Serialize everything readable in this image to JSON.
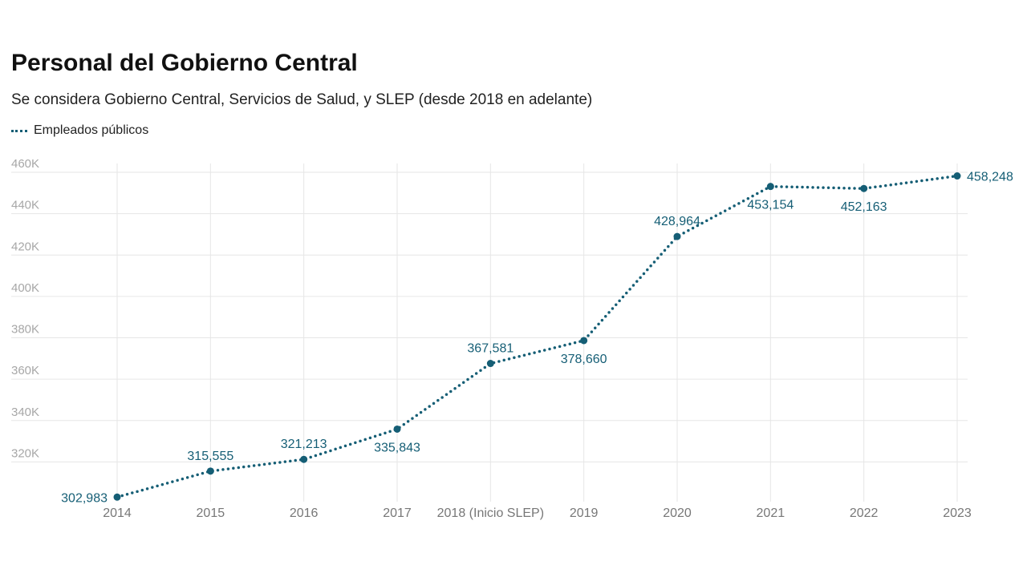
{
  "title": "Personal del Gobierno Central",
  "subtitle": "Se considera Gobierno Central, Servicios de Salud, y SLEP (desde 2018 en adelante)",
  "chart_data": {
    "type": "line",
    "title": "Personal del Gobierno Central",
    "subtitle": "Se considera Gobierno Central, Servicios de Salud, y SLEP (desde 2018 en adelante)",
    "categories": [
      "2014",
      "2015",
      "2016",
      "2017",
      "2018 (Inicio SLEP)",
      "2019",
      "2020",
      "2021",
      "2022",
      "2023"
    ],
    "series": [
      {
        "name": "Empleados públicos",
        "color": "#155e75",
        "line_style": "dotted",
        "values": [
          302983,
          315555,
          321213,
          335843,
          367581,
          378660,
          428964,
          453154,
          452163,
          458248
        ],
        "labels": [
          "302,983",
          "315,555",
          "321,213",
          "335,843",
          "367,581",
          "378,660",
          "428,964",
          "453,154",
          "452,163",
          "458,248"
        ],
        "label_positions": [
          "left",
          "above",
          "above",
          "below",
          "above",
          "below",
          "above",
          "below",
          "below",
          "right"
        ]
      }
    ],
    "y_ticks": [
      {
        "value": 320000,
        "label": "320K"
      },
      {
        "value": 340000,
        "label": "340K"
      },
      {
        "value": 360000,
        "label": "360K"
      },
      {
        "value": 380000,
        "label": "380K"
      },
      {
        "value": 400000,
        "label": "400K"
      },
      {
        "value": 420000,
        "label": "420K"
      },
      {
        "value": 440000,
        "label": "440K"
      },
      {
        "value": 460000,
        "label": "460K"
      }
    ],
    "ylim": [
      300000,
      460000
    ],
    "grid": true,
    "legend_position": "top-left",
    "xlabel": "",
    "ylabel": ""
  }
}
